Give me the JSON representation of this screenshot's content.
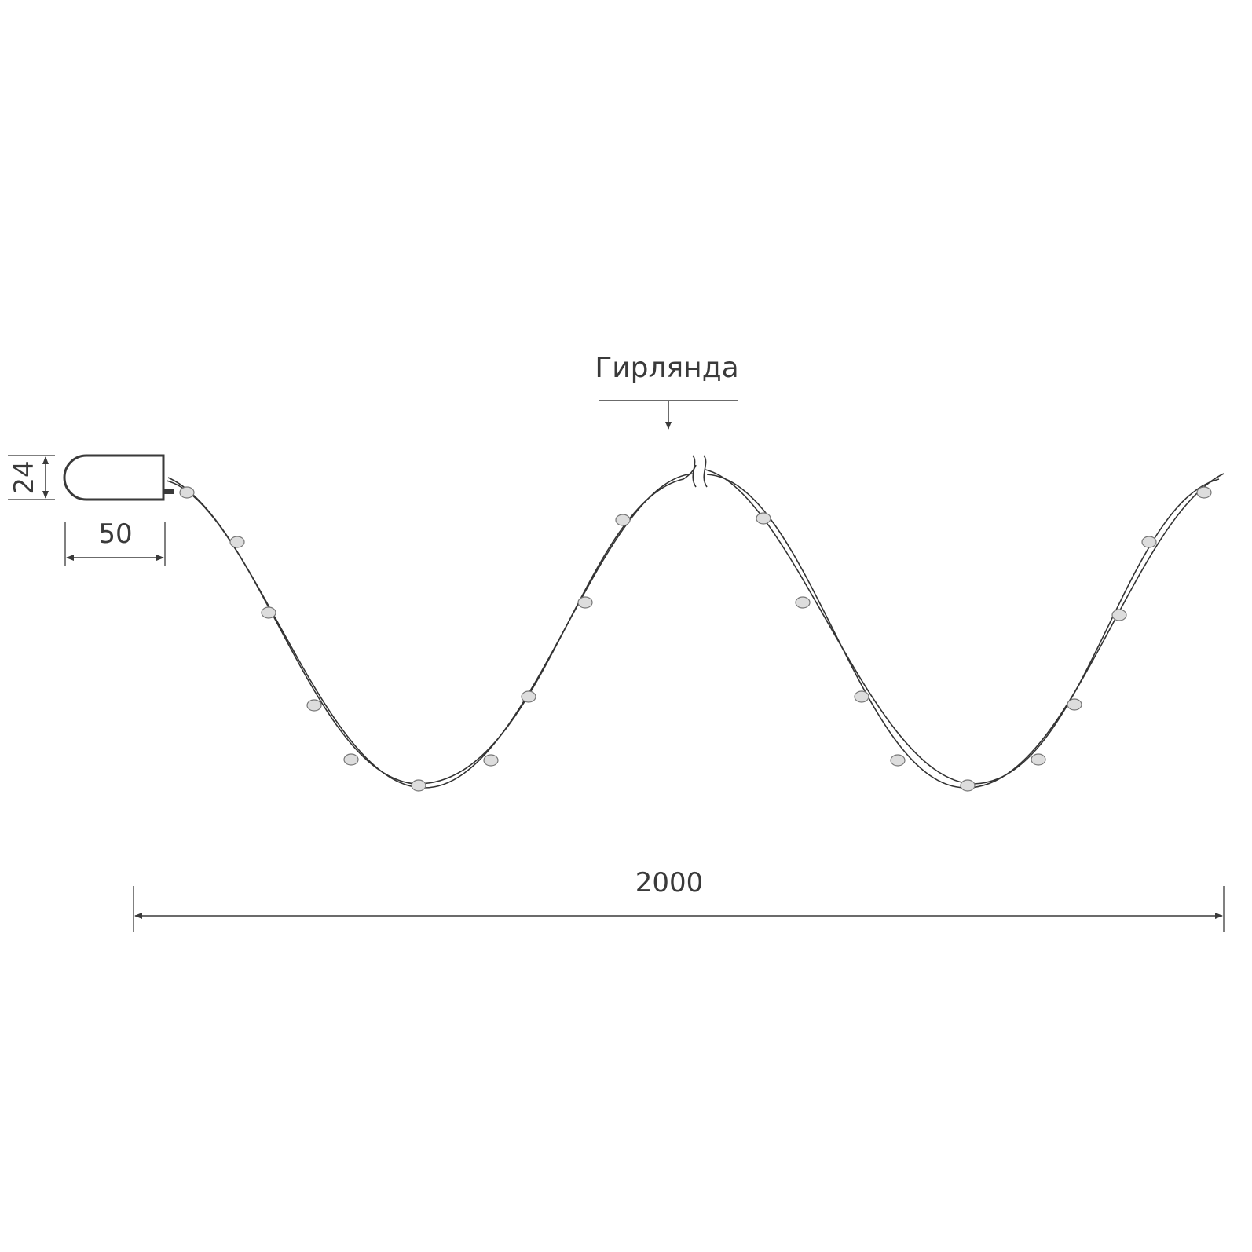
{
  "drawing": {
    "label": "Гирлянда",
    "dimensions": {
      "battery_height": "24",
      "battery_width": "50",
      "total_length": "2000"
    },
    "line_color": "#3a3a3a"
  }
}
